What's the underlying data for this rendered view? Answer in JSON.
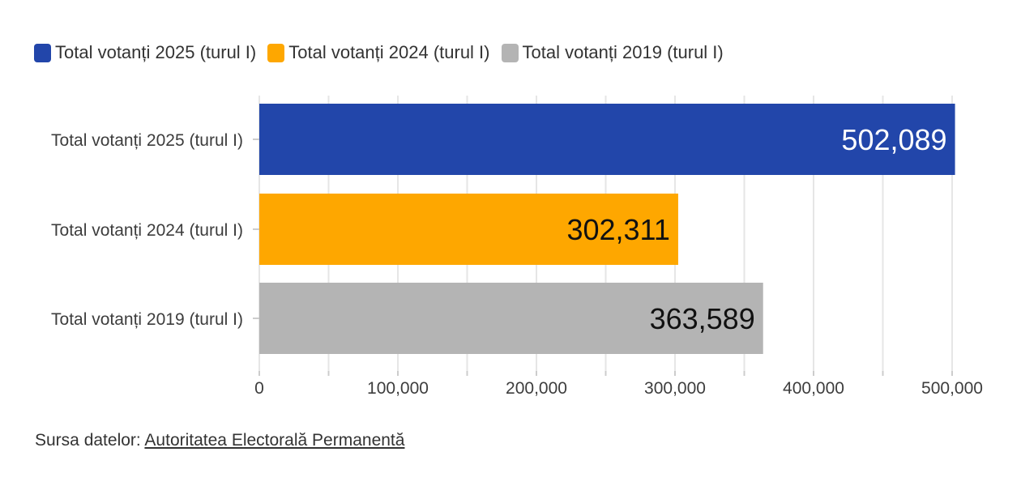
{
  "chart_data": {
    "type": "bar",
    "orientation": "horizontal",
    "categories": [
      "Total votanți 2025 (turul I)",
      "Total votanți 2024 (turul I)",
      "Total votanți 2019 (turul I)"
    ],
    "values": [
      502089,
      302311,
      363589
    ],
    "value_labels": [
      "502,089",
      "302,311",
      "363,589"
    ],
    "colors": [
      "#2246aa",
      "#fea700",
      "#b4b4b4"
    ],
    "value_label_colors": [
      "#ffffff",
      "#111111",
      "#111111"
    ],
    "xlim": [
      0,
      550000
    ],
    "xticks": [
      0,
      100000,
      200000,
      300000,
      400000,
      500000
    ],
    "xtick_labels": [
      "0",
      "100,000",
      "200,000",
      "300,000",
      "400,000",
      "500,000"
    ],
    "minor_gridlines": [
      50000,
      150000,
      250000,
      350000,
      450000,
      550000
    ],
    "grid": true,
    "legend_placement": "top-left"
  },
  "legend": {
    "items": [
      {
        "label": "Total votanți 2025 (turul I)",
        "color": "#2246aa"
      },
      {
        "label": "Total votanți 2024 (turul I)",
        "color": "#fea700"
      },
      {
        "label": "Total votanți 2019 (turul I)",
        "color": "#b4b4b4"
      }
    ]
  },
  "source": {
    "prefix": "Sursa datelor: ",
    "link_text": "Autoritatea Electorală Permanentă"
  }
}
